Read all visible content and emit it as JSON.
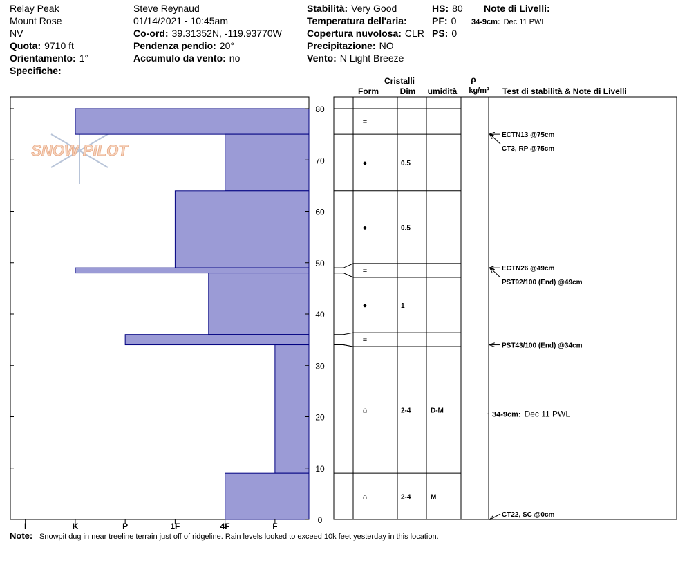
{
  "header": {
    "columns": [
      [
        {
          "value": "Relay Peak"
        },
        {
          "value": "Mount Rose"
        },
        {
          "value": "NV"
        },
        {
          "label": "Quota:",
          "value": "9710 ft"
        },
        {
          "label": "Orientamento:",
          "value": "1°"
        },
        {
          "label": "Specifiche:"
        }
      ],
      [
        {
          "value": "Steve Reynaud"
        },
        {
          "value": "01/14/2021 - 10:45am"
        },
        {
          "label": "Co-ord:",
          "value": "39.31352N, -119.93770W"
        },
        {
          "label": "Pendenza pendio:",
          "value": "20°"
        },
        {
          "label": "Accumulo da vento:",
          "value": "no"
        }
      ],
      [
        {
          "label": "Stabilità:",
          "value": "Very Good"
        },
        {
          "label": "Temperatura dell'aria:"
        },
        {
          "label": "Copertura nuvolosa:",
          "value": "CLR"
        },
        {
          "label": "Precipitazione:",
          "value": "NO"
        },
        {
          "label": "Vento:",
          "value": "N Light Breeze"
        }
      ],
      [
        {
          "label": "HS:",
          "value": "80"
        },
        {
          "label": "PF:",
          "value": "0"
        },
        {
          "label": "PS:",
          "value": "0"
        }
      ],
      [
        {
          "label": "Note di Livelli:"
        }
      ]
    ]
  },
  "logo": "SNOW PILOT",
  "profile": {
    "ylim": [
      0,
      80
    ],
    "yticks": [
      0,
      10,
      20,
      30,
      40,
      50,
      60,
      70,
      80
    ],
    "xlim": [
      -0.3,
      5.68
    ],
    "xticks": [
      {
        "value": 0,
        "label": "I"
      },
      {
        "value": 1,
        "label": "K"
      },
      {
        "value": 2,
        "label": "P"
      },
      {
        "value": 3,
        "label": "1F"
      },
      {
        "value": 4,
        "label": "4F"
      },
      {
        "value": 5,
        "label": "F"
      }
    ],
    "color": "#9b9bd6",
    "layers": [
      {
        "top": 80,
        "bottom": 75,
        "hardness": 1,
        "form": "="
      },
      {
        "top": 75,
        "bottom": 64,
        "hardness": 4,
        "form": "●",
        "dim": "0.5"
      },
      {
        "top": 64,
        "bottom": 49,
        "hardness": 3,
        "form": "●",
        "dim": "0.5"
      },
      {
        "top": 49,
        "bottom": 48,
        "hardness": 1,
        "form": "="
      },
      {
        "top": 48,
        "bottom": 36,
        "hardness": 3.67,
        "form": "●",
        "dim": "1"
      },
      {
        "top": 36,
        "bottom": 34,
        "hardness": 2,
        "form": "="
      },
      {
        "top": 34,
        "bottom": 9,
        "hardness": 5,
        "form": "⌂",
        "dim": "2-4",
        "moisture": "D-M"
      },
      {
        "top": 9,
        "bottom": 0,
        "hardness": 4,
        "form": "⌂",
        "dim": "2-4",
        "moisture": "M"
      }
    ]
  },
  "table_header": {
    "crystals": "Cristalli",
    "form": "Form",
    "dim": "Dim",
    "moisture": "umidità",
    "rho": "ρ",
    "density_unit": "kg/m³",
    "tests": "Test di stabilità & Note di Livelli"
  },
  "tests": [
    {
      "label": "ECTN13 @75cm",
      "depth": 75
    },
    {
      "label": "CT3, RP @75cm",
      "depth": 75
    },
    {
      "label": "ECTN26 @49cm",
      "depth": 49
    },
    {
      "label": "PST92/100 (End) @49cm",
      "depth": 49
    },
    {
      "label": "PST43/100 (End) @34cm",
      "depth": 34
    },
    {
      "label": "CT22, SC @0cm",
      "depth": 0
    }
  ],
  "layer_notes": [
    {
      "label": "34-9cm:",
      "value": "Dec 11 PWL",
      "top": 34,
      "bottom": 9
    }
  ],
  "note": {
    "label": "Note:",
    "text": "Snowpit dug in near treeline terrain just off of ridgeline.  Rain levels looked to exceed 10k feet yesterday in this location."
  }
}
